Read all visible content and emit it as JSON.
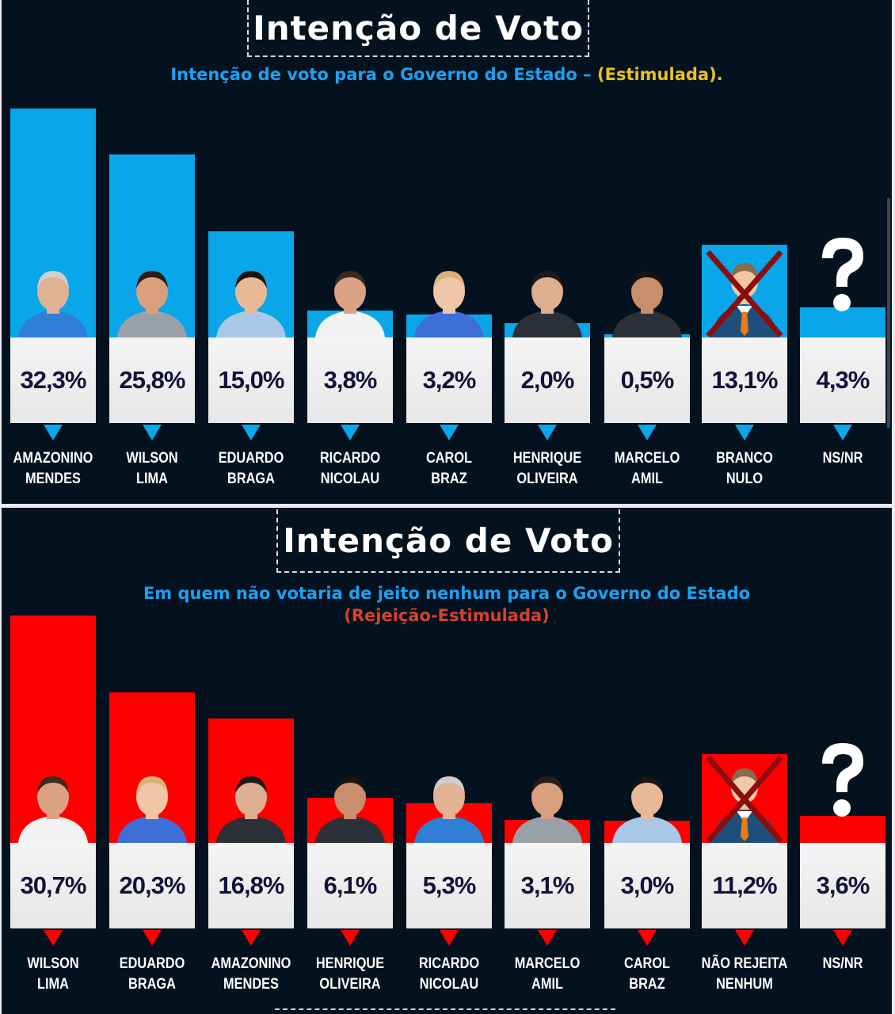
{
  "chart_data": [
    {
      "type": "bar",
      "title": "Intenção de Voto",
      "subtitle": "Intenção de voto para o Governo do Estado –",
      "subtitle_accent": "(Estimulada).",
      "bar_color": "#0aa6ea",
      "value_unit": "%",
      "categories": [
        "AMAZONINO MENDES",
        "WILSON LIMA",
        "EDUARDO BRAGA",
        "RICARDO NICOLAU",
        "CAROL BRAZ",
        "HENRIQUE OLIVEIRA",
        "MARCELO AMIL",
        "BRANCO NULO",
        "NS/NR"
      ],
      "name_lines": [
        [
          "AMAZONINO",
          "MENDES"
        ],
        [
          "WILSON",
          "LIMA"
        ],
        [
          "EDUARDO",
          "BRAGA"
        ],
        [
          "RICARDO",
          "NICOLAU"
        ],
        [
          "CAROL",
          "BRAZ"
        ],
        [
          "HENRIQUE",
          "OLIVEIRA"
        ],
        [
          "MARCELO",
          "AMIL"
        ],
        [
          "BRANCO",
          "NULO"
        ],
        [
          "NS/NR",
          ""
        ]
      ],
      "values": [
        32.3,
        25.8,
        15.0,
        3.8,
        3.2,
        2.0,
        0.5,
        13.1,
        4.3
      ],
      "labels": [
        "32,3%",
        "25,8%",
        "15,0%",
        "3,8%",
        "3,2%",
        "2,0%",
        "0,5%",
        "13,1%",
        "4,3%"
      ],
      "icons": [
        "portrait",
        "portrait",
        "portrait",
        "portrait",
        "portrait",
        "portrait",
        "portrait",
        "crossed-person-icon",
        "question-mark-icon"
      ],
      "xlabel": "",
      "ylabel": "",
      "ylim": [
        0,
        33
      ],
      "grid": false,
      "legend": "none"
    },
    {
      "type": "bar",
      "title": "Intenção de Voto",
      "subtitle": "Em quem não votaria de jeito nenhum para o Governo do Estado",
      "subtitle_accent": "(Rejeição-Estimulada)",
      "bar_color": "#ff0000",
      "value_unit": "%",
      "categories": [
        "WILSON LIMA",
        "EDUARDO BRAGA",
        "AMAZONINO MENDES",
        "HENRIQUE OLIVEIRA",
        "RICARDO NICOLAU",
        "MARCELO AMIL",
        "CAROL BRAZ",
        "NÃO REJEITA NENHUM",
        "NS/NR"
      ],
      "name_lines": [
        [
          "WILSON",
          "LIMA"
        ],
        [
          "EDUARDO",
          "BRAGA"
        ],
        [
          "AMAZONINO",
          "MENDES"
        ],
        [
          "HENRIQUE",
          "OLIVEIRA"
        ],
        [
          "RICARDO",
          "NICOLAU"
        ],
        [
          "MARCELO",
          "AMIL"
        ],
        [
          "CAROL",
          "BRAZ"
        ],
        [
          "NÃO REJEITA",
          "NENHUM"
        ],
        [
          "NS/NR",
          ""
        ]
      ],
      "values": [
        30.7,
        20.3,
        16.8,
        6.1,
        5.3,
        3.1,
        3.0,
        11.2,
        3.6
      ],
      "labels": [
        "30,7%",
        "20,3%",
        "16,8%",
        "6,1%",
        "5,3%",
        "3,1%",
        "3,0%",
        "11,2%",
        "3,6%"
      ],
      "icons": [
        "portrait",
        "portrait",
        "portrait",
        "portrait",
        "portrait",
        "portrait",
        "portrait",
        "crossed-person-icon",
        "question-mark-icon"
      ],
      "xlabel": "",
      "ylabel": "",
      "ylim": [
        0,
        31
      ],
      "grid": false,
      "legend": "none"
    }
  ]
}
